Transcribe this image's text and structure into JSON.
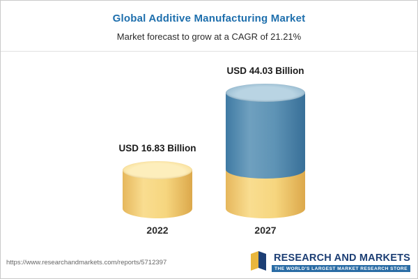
{
  "header": {
    "title": "Global Additive Manufacturing Market",
    "subtitle": "Market forecast to grow at a CAGR of 21.21%"
  },
  "chart_data": {
    "type": "bar",
    "variant": "3d-cylinder",
    "title": "Global Additive Manufacturing Market",
    "subtitle": "Market forecast to grow at a CAGR of 21.21%",
    "unit": "USD Billion",
    "cagr_percent": 21.21,
    "categories": [
      "2022",
      "2027"
    ],
    "values": [
      16.83,
      44.03
    ],
    "value_labels": [
      "USD 16.83 Billion",
      "USD 44.03 Billion"
    ],
    "colors": {
      "base_segment": "#f2cf6f",
      "growth_segment": "#5289ad"
    },
    "layout": {
      "legend": "none",
      "grid": "off",
      "note": "2027 cylinder stacks 2022 base value (yellow) plus growth (blue)"
    }
  },
  "footer": {
    "url": "https://www.researchandmarkets.com/reports/5712397",
    "logo": {
      "word1": "RESEARCH",
      "word2": "AND",
      "word3": "MARKETS",
      "tagline": "THE WORLD'S LARGEST MARKET RESEARCH STORE"
    }
  }
}
